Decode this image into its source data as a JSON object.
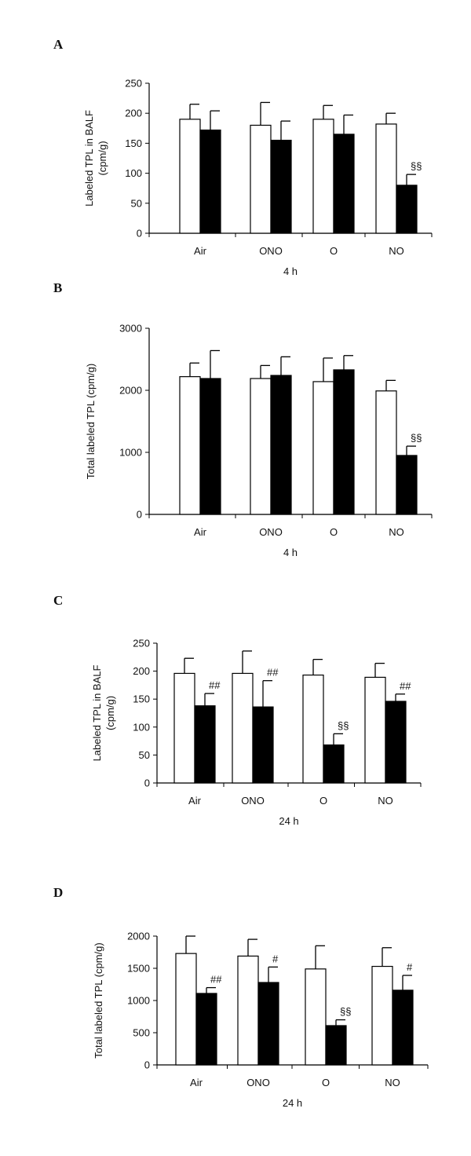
{
  "chart_data": [
    {
      "panel": "A",
      "type": "bar",
      "categories": [
        "Air",
        "ONO",
        "O",
        "NO"
      ],
      "series": [
        {
          "color": "#ffffff",
          "values": [
            190,
            180,
            190,
            182
          ],
          "errors": [
            25,
            38,
            23,
            18
          ]
        },
        {
          "color": "#000000",
          "values": [
            172,
            155,
            165,
            80
          ],
          "errors": [
            32,
            32,
            32,
            18
          ]
        }
      ],
      "annotations": [
        {
          "category": 3,
          "series": 1,
          "text": "§§"
        }
      ],
      "ylabel": "Labeled TPL in BALF\n(cpm/g)",
      "xlabel": "4 h",
      "ylim": [
        0,
        250
      ],
      "yticks": [
        0,
        50,
        100,
        150,
        200,
        250
      ],
      "grid": false
    },
    {
      "panel": "B",
      "type": "bar",
      "categories": [
        "Air",
        "ONO",
        "O",
        "NO"
      ],
      "series": [
        {
          "color": "#ffffff",
          "values": [
            2220,
            2190,
            2140,
            1990
          ],
          "errors": [
            220,
            210,
            380,
            170
          ]
        },
        {
          "color": "#000000",
          "values": [
            2190,
            2240,
            2330,
            950
          ],
          "errors": [
            450,
            300,
            230,
            150
          ]
        }
      ],
      "annotations": [
        {
          "category": 3,
          "series": 1,
          "text": "§§"
        }
      ],
      "ylabel": "Total labeled TPL (cpm/g)",
      "xlabel": "4 h",
      "ylim": [
        0,
        3000
      ],
      "yticks": [
        0,
        1000,
        2000,
        3000
      ],
      "grid": false
    },
    {
      "panel": "C",
      "type": "bar",
      "categories": [
        "Air",
        "ONO",
        "O",
        "NO"
      ],
      "series": [
        {
          "color": "#ffffff",
          "values": [
            196,
            196,
            193,
            189
          ],
          "errors": [
            27,
            40,
            28,
            25
          ]
        },
        {
          "color": "#000000",
          "values": [
            138,
            136,
            68,
            146
          ],
          "errors": [
            22,
            47,
            20,
            13
          ]
        }
      ],
      "annotations": [
        {
          "category": 0,
          "series": 1,
          "text": "##"
        },
        {
          "category": 1,
          "series": 1,
          "text": "##"
        },
        {
          "category": 2,
          "series": 1,
          "text": "§§"
        },
        {
          "category": 3,
          "series": 1,
          "text": "##"
        }
      ],
      "ylabel": "Labeled TPL in BALF\n(cpm/g)",
      "xlabel": "24 h",
      "ylim": [
        0,
        250
      ],
      "yticks": [
        0,
        50,
        100,
        150,
        200,
        250
      ],
      "grid": false
    },
    {
      "panel": "D",
      "type": "bar",
      "categories": [
        "Air",
        "ONO",
        "O",
        "NO"
      ],
      "series": [
        {
          "color": "#ffffff",
          "values": [
            1730,
            1690,
            1490,
            1530
          ],
          "errors": [
            270,
            260,
            360,
            290
          ]
        },
        {
          "color": "#000000",
          "values": [
            1110,
            1280,
            610,
            1160
          ],
          "errors": [
            90,
            240,
            90,
            230
          ]
        }
      ],
      "annotations": [
        {
          "category": 0,
          "series": 1,
          "text": "##"
        },
        {
          "category": 1,
          "series": 1,
          "text": "#"
        },
        {
          "category": 2,
          "series": 1,
          "text": "§§"
        },
        {
          "category": 3,
          "series": 1,
          "text": "#"
        }
      ],
      "ylabel": "Total labeled TPL (cpm/g)",
      "xlabel": "24 h",
      "ylim": [
        0,
        2000
      ],
      "yticks": [
        0,
        500,
        1000,
        1500,
        2000
      ],
      "grid": false
    }
  ]
}
